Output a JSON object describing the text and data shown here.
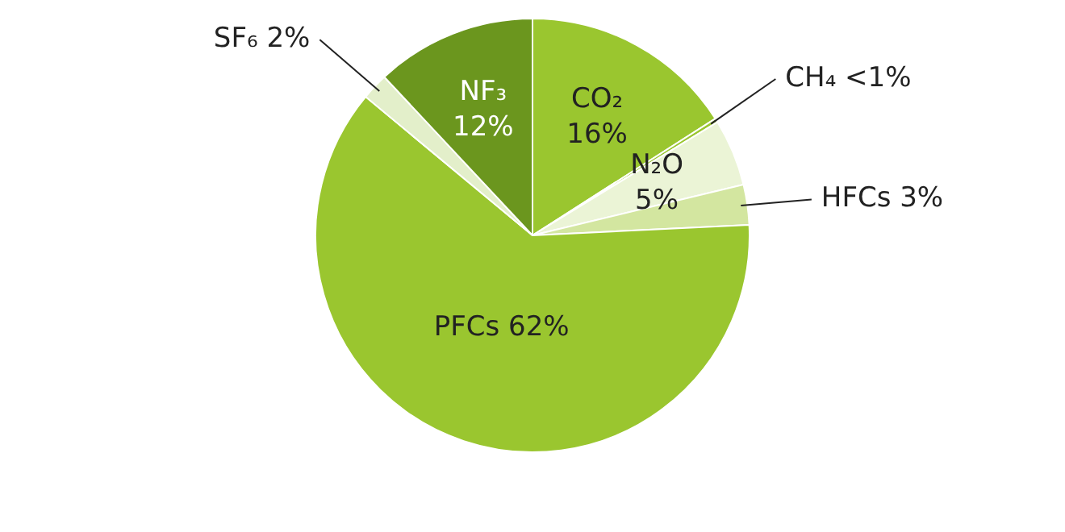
{
  "chart_data": {
    "type": "pie",
    "categories": [
      "CO₂",
      "CH₄",
      "N₂O",
      "HFCs",
      "PFCs",
      "SF₆",
      "NF₃"
    ],
    "values": [
      16,
      0.3,
      5,
      3,
      62,
      2,
      12
    ],
    "value_labels": [
      "16%",
      "<1%",
      "5%",
      "3%",
      "62%",
      "2%",
      "12%"
    ],
    "colors": [
      "#9ac62f",
      "#9ac62f",
      "#ebf4d6",
      "#d3e6a0",
      "#9ac62f",
      "#e3efca",
      "#6b961e"
    ],
    "legend": false
  }
}
